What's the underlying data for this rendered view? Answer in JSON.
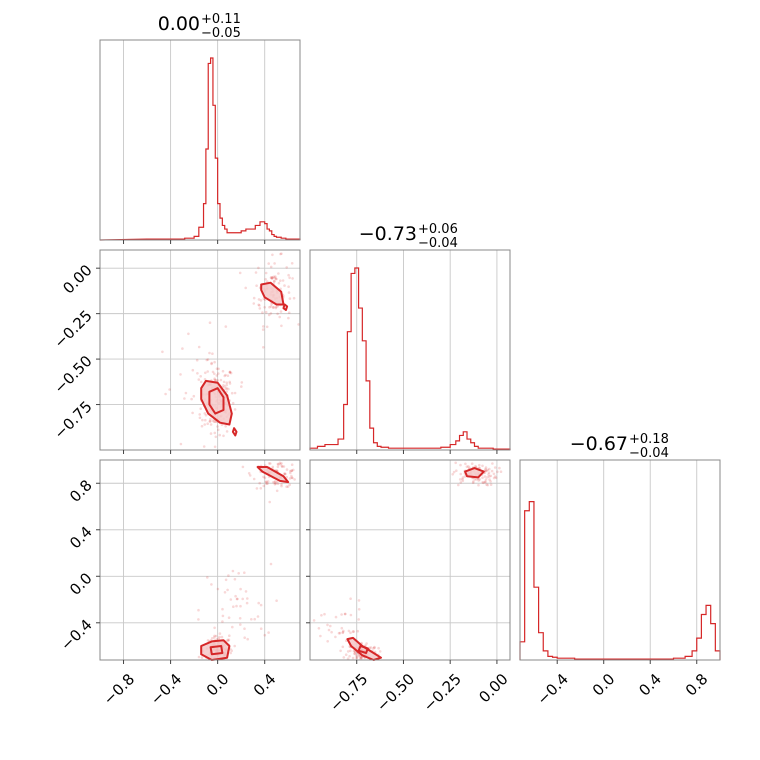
{
  "colors": {
    "accent": "#d62728",
    "fill": "#f4c9c9",
    "grid": "#c8c8c8",
    "frame": "#888888"
  },
  "chart_data": {
    "type": "corner",
    "parameters": [
      {
        "median": "0.00",
        "upper": "+0.11",
        "lower": "−0.05",
        "range": [
          -1.0,
          0.7
        ],
        "ticks": [
          -0.8,
          -0.4,
          0.0,
          0.4
        ],
        "tick_labels": [
          "−0.8",
          "−0.4",
          "0.0",
          "0.4"
        ],
        "hist_edges": [
          -0.6,
          -0.52,
          -0.44,
          -0.36,
          -0.28,
          -0.24,
          -0.2,
          -0.16,
          -0.12,
          -0.1,
          -0.08,
          -0.06,
          -0.04,
          -0.02,
          0.0,
          0.02,
          0.04,
          0.06,
          0.08,
          0.12,
          0.16,
          0.2,
          0.24,
          0.28,
          0.32,
          0.36,
          0.4,
          0.42,
          0.44,
          0.46,
          0.48,
          0.5,
          0.54,
          0.58,
          0.62,
          0.66,
          0.7
        ],
        "hist_values": [
          0.005,
          0.005,
          0.005,
          0.005,
          0.01,
          0.01,
          0.02,
          0.07,
          0.2,
          0.5,
          0.97,
          1.0,
          0.74,
          0.45,
          0.2,
          0.12,
          0.08,
          0.06,
          0.04,
          0.04,
          0.04,
          0.05,
          0.06,
          0.06,
          0.08,
          0.1,
          0.09,
          0.06,
          0.05,
          0.03,
          0.02,
          0.015,
          0.01,
          0.005,
          0.005,
          0.005
        ]
      },
      {
        "median": "−0.73",
        "upper": "+0.06",
        "lower": "−0.04",
        "range": [
          -1.0,
          0.07
        ],
        "ticks": [
          -0.75,
          -0.5,
          -0.25,
          0.0
        ],
        "tick_labels": [
          "−0.75",
          "−0.50",
          "−0.25",
          "0.00"
        ],
        "hist_edges": [
          -1.0,
          -0.96,
          -0.92,
          -0.88,
          -0.85,
          -0.82,
          -0.8,
          -0.78,
          -0.76,
          -0.74,
          -0.72,
          -0.7,
          -0.68,
          -0.66,
          -0.64,
          -0.62,
          -0.58,
          -0.54,
          -0.5,
          -0.45,
          -0.4,
          -0.35,
          -0.3,
          -0.25,
          -0.22,
          -0.2,
          -0.18,
          -0.16,
          -0.14,
          -0.12,
          -0.1,
          -0.06,
          -0.02,
          0.02,
          0.07
        ],
        "hist_values": [
          0.01,
          0.02,
          0.03,
          0.03,
          0.06,
          0.25,
          0.65,
          0.97,
          1.0,
          0.78,
          0.6,
          0.38,
          0.12,
          0.04,
          0.02,
          0.015,
          0.01,
          0.01,
          0.01,
          0.01,
          0.01,
          0.01,
          0.015,
          0.03,
          0.05,
          0.08,
          0.1,
          0.06,
          0.04,
          0.02,
          0.01,
          0.01,
          0.005,
          0.005
        ]
      },
      {
        "median": "−0.67",
        "upper": "+0.18",
        "lower": "−0.04",
        "range": [
          -0.72,
          1.0
        ],
        "ticks": [
          -0.4,
          0.0,
          0.4,
          0.8
        ],
        "tick_labels": [
          "−0.4",
          "0.0",
          "0.4",
          "0.8"
        ],
        "hist_edges": [
          -0.72,
          -0.68,
          -0.64,
          -0.6,
          -0.56,
          -0.52,
          -0.48,
          -0.44,
          -0.4,
          -0.35,
          -0.3,
          -0.25,
          -0.2,
          -0.1,
          0.0,
          0.2,
          0.4,
          0.6,
          0.7,
          0.76,
          0.8,
          0.84,
          0.88,
          0.92,
          0.96,
          1.0
        ],
        "hist_values": [
          0.1,
          0.82,
          0.87,
          0.4,
          0.15,
          0.05,
          0.02,
          0.015,
          0.01,
          0.01,
          0.01,
          0.005,
          0.005,
          0.005,
          0.005,
          0.005,
          0.005,
          0.01,
          0.02,
          0.05,
          0.12,
          0.25,
          0.3,
          0.2,
          0.05
        ]
      }
    ],
    "pairs": [
      {
        "row": 1,
        "col": 0,
        "ylim": [
          -1.0,
          0.1
        ],
        "yticks": [
          0.0,
          -0.25,
          -0.5,
          -0.75
        ],
        "ytick_labels": [
          "0.00",
          "−0.25",
          "−0.50",
          "−0.75"
        ],
        "clusters": [
          {
            "cx": 0.0,
            "cy": -0.72,
            "sx": 0.07,
            "sy": 0.1,
            "n": 160
          },
          {
            "cx": 0.47,
            "cy": -0.13,
            "sx": 0.08,
            "sy": 0.09,
            "n": 110
          },
          {
            "cx": -0.12,
            "cy": -0.65,
            "sx": 0.2,
            "sy": 0.15,
            "n": 40
          }
        ],
        "contours": [
          {
            "points": [
              [
                -0.14,
                -0.66
              ],
              [
                -0.1,
                -0.62
              ],
              [
                0.0,
                -0.63
              ],
              [
                0.08,
                -0.7
              ],
              [
                0.12,
                -0.8
              ],
              [
                0.1,
                -0.86
              ],
              [
                0.02,
                -0.85
              ],
              [
                -0.08,
                -0.8
              ],
              [
                -0.14,
                -0.72
              ]
            ],
            "filled": true
          },
          {
            "points": [
              [
                -0.07,
                -0.68
              ],
              [
                0.0,
                -0.66
              ],
              [
                0.05,
                -0.71
              ],
              [
                0.05,
                -0.78
              ],
              [
                -0.02,
                -0.8
              ],
              [
                -0.07,
                -0.75
              ]
            ],
            "filled": false
          },
          {
            "points": [
              [
                0.14,
                -0.88
              ],
              [
                0.16,
                -0.9
              ],
              [
                0.15,
                -0.92
              ],
              [
                0.13,
                -0.9
              ]
            ],
            "filled": false
          },
          {
            "points": [
              [
                0.37,
                -0.09
              ],
              [
                0.45,
                -0.08
              ],
              [
                0.54,
                -0.13
              ],
              [
                0.56,
                -0.2
              ],
              [
                0.5,
                -0.2
              ],
              [
                0.4,
                -0.16
              ],
              [
                0.37,
                -0.12
              ]
            ],
            "filled": true
          },
          {
            "points": [
              [
                0.57,
                -0.2
              ],
              [
                0.59,
                -0.21
              ],
              [
                0.58,
                -0.23
              ],
              [
                0.56,
                -0.22
              ]
            ],
            "filled": false
          }
        ]
      },
      {
        "row": 2,
        "col": 0,
        "ylim": [
          -0.72,
          1.0
        ],
        "yticks": [
          0.8,
          0.4,
          0.0,
          -0.4
        ],
        "ytick_labels": [
          "0.8",
          "0.4",
          "0.0",
          "−0.4"
        ],
        "clusters": [
          {
            "cx": 0.0,
            "cy": -0.64,
            "sx": 0.06,
            "sy": 0.06,
            "n": 150
          },
          {
            "cx": 0.5,
            "cy": 0.88,
            "sx": 0.1,
            "sy": 0.06,
            "n": 90
          },
          {
            "cx": 0.15,
            "cy": -0.3,
            "sx": 0.15,
            "sy": 0.2,
            "n": 50
          }
        ],
        "contours": [
          {
            "points": [
              [
                -0.14,
                -0.6
              ],
              [
                -0.05,
                -0.56
              ],
              [
                0.05,
                -0.55
              ],
              [
                0.1,
                -0.6
              ],
              [
                0.08,
                -0.7
              ],
              [
                -0.05,
                -0.72
              ],
              [
                -0.14,
                -0.67
              ]
            ],
            "filled": true
          },
          {
            "points": [
              [
                -0.06,
                -0.61
              ],
              [
                0.03,
                -0.6
              ],
              [
                0.04,
                -0.66
              ],
              [
                -0.05,
                -0.67
              ]
            ],
            "filled": false
          },
          {
            "points": [
              [
                0.34,
                0.94
              ],
              [
                0.42,
                0.94
              ],
              [
                0.56,
                0.86
              ],
              [
                0.6,
                0.81
              ],
              [
                0.53,
                0.82
              ],
              [
                0.38,
                0.9
              ]
            ],
            "filled": true
          }
        ]
      },
      {
        "row": 2,
        "col": 1,
        "ylim": [
          -0.72,
          1.0
        ],
        "yticks": [
          0.8,
          0.4,
          0.0,
          -0.4
        ],
        "ytick_labels": [
          "0.8",
          "0.4",
          "0.0",
          "−0.4"
        ],
        "clusters": [
          {
            "cx": -0.72,
            "cy": -0.65,
            "sx": 0.04,
            "sy": 0.04,
            "n": 120
          },
          {
            "cx": -0.12,
            "cy": 0.88,
            "sx": 0.06,
            "sy": 0.05,
            "n": 100
          },
          {
            "cx": -0.85,
            "cy": -0.45,
            "sx": 0.08,
            "sy": 0.12,
            "n": 40
          }
        ],
        "contours": [
          {
            "points": [
              [
                -0.8,
                -0.54
              ],
              [
                -0.77,
                -0.53
              ],
              [
                -0.72,
                -0.6
              ],
              [
                -0.66,
                -0.66
              ],
              [
                -0.62,
                -0.7
              ],
              [
                -0.66,
                -0.72
              ],
              [
                -0.72,
                -0.68
              ],
              [
                -0.78,
                -0.6
              ]
            ],
            "filled": true
          },
          {
            "points": [
              [
                -0.73,
                -0.6
              ],
              [
                -0.69,
                -0.62
              ],
              [
                -0.7,
                -0.66
              ],
              [
                -0.74,
                -0.64
              ]
            ],
            "filled": false
          },
          {
            "points": [
              [
                -0.17,
                0.9
              ],
              [
                -0.12,
                0.93
              ],
              [
                -0.07,
                0.9
              ],
              [
                -0.1,
                0.85
              ],
              [
                -0.16,
                0.86
              ]
            ],
            "filled": true
          }
        ]
      }
    ]
  }
}
